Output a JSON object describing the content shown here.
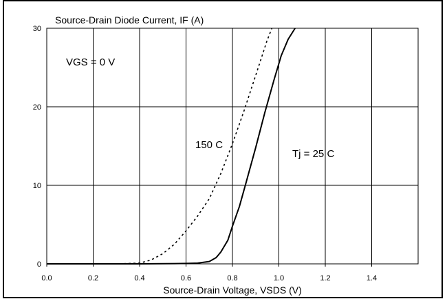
{
  "chart_data": {
    "type": "line",
    "title": "",
    "ylabel": "Source-Drain Diode Current, IF (A)",
    "xlabel": "Source-Drain Voltage, VSDS (V)",
    "xlim": [
      0.0,
      1.6
    ],
    "ylim": [
      0,
      30
    ],
    "x_ticks": [
      "0.0",
      "0.2",
      "0.4",
      "0.6",
      "0.8",
      "1.0",
      "1.2",
      "1.4"
    ],
    "y_ticks": [
      "0",
      "10",
      "20",
      "30"
    ],
    "grid": true,
    "annotations": [
      "VGS = 0 V",
      "150 C",
      "Tj = 25 C"
    ],
    "series": [
      {
        "name": "Tj = 25 C",
        "style": "solid",
        "color": "#000000",
        "points": [
          [
            0.0,
            0.0
          ],
          [
            0.4,
            0.0
          ],
          [
            0.5,
            0.02
          ],
          [
            0.6,
            0.05
          ],
          [
            0.65,
            0.1
          ],
          [
            0.7,
            0.3
          ],
          [
            0.73,
            0.8
          ],
          [
            0.75,
            1.5
          ],
          [
            0.78,
            3.0
          ],
          [
            0.8,
            4.8
          ],
          [
            0.83,
            7.3
          ],
          [
            0.86,
            10.5
          ],
          [
            0.9,
            14.8
          ],
          [
            0.94,
            19.3
          ],
          [
            0.98,
            23.5
          ],
          [
            1.01,
            26.5
          ],
          [
            1.04,
            28.6
          ],
          [
            1.07,
            30.0
          ]
        ]
      },
      {
        "name": "150 C",
        "style": "dotted",
        "color": "#000000",
        "points": [
          [
            0.0,
            0.0
          ],
          [
            0.3,
            0.0
          ],
          [
            0.4,
            0.1
          ],
          [
            0.45,
            0.5
          ],
          [
            0.5,
            1.3
          ],
          [
            0.55,
            2.5
          ],
          [
            0.6,
            4.2
          ],
          [
            0.65,
            6.1
          ],
          [
            0.7,
            8.3
          ],
          [
            0.75,
            11.5
          ],
          [
            0.8,
            15.3
          ],
          [
            0.85,
            19.5
          ],
          [
            0.9,
            24.0
          ],
          [
            0.95,
            28.5
          ],
          [
            0.97,
            30.0
          ]
        ]
      }
    ]
  }
}
